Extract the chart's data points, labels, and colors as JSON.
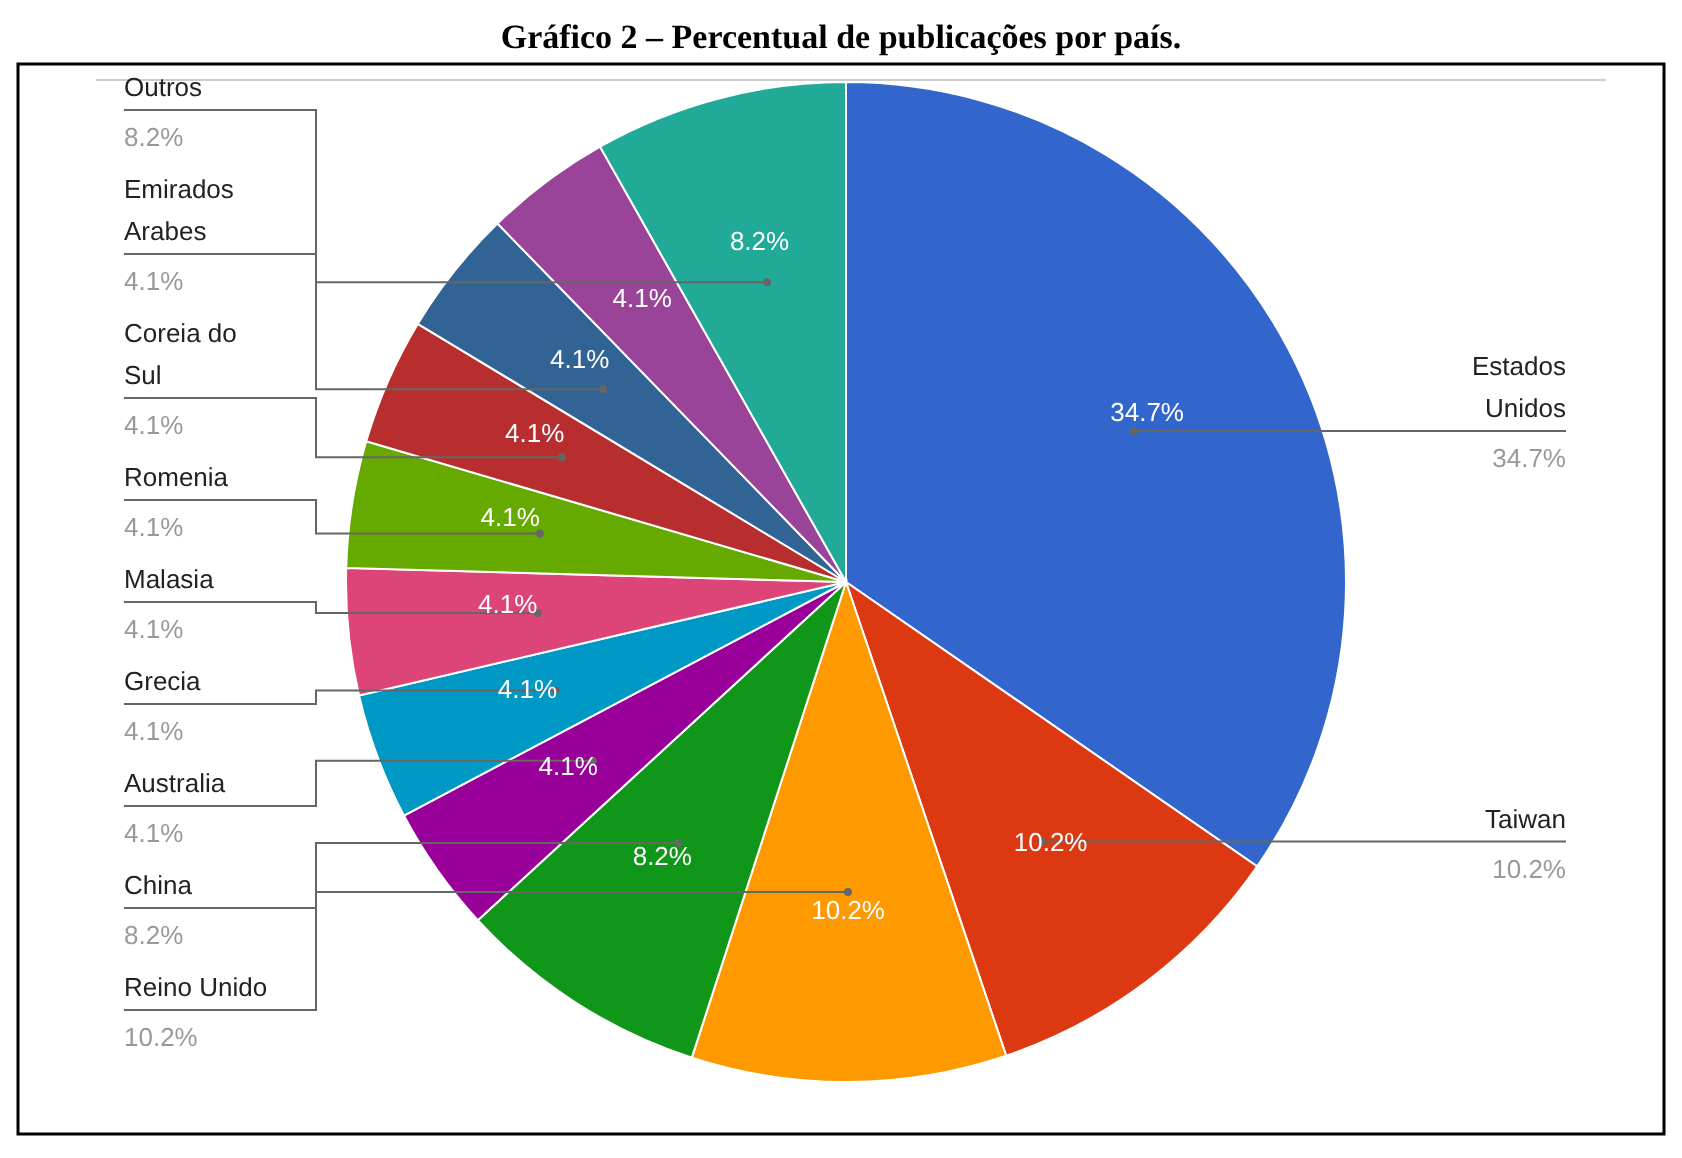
{
  "chart_data": {
    "type": "pie",
    "title": "Gráfico 2 – Percentual de publicações por país.",
    "categories": [
      "Estados Unidos",
      "Taiwan",
      "Reino Unido",
      "China",
      "Australia",
      "Grecia",
      "Malasia",
      "Romenia",
      "Coreia do Sul",
      "Emirados Arabes",
      null,
      "Outros"
    ],
    "values": [
      34.7,
      10.2,
      10.2,
      8.2,
      4.1,
      4.1,
      4.1,
      4.1,
      4.1,
      4.1,
      4.1,
      8.2
    ],
    "value_labels": [
      "34.7%",
      "10.2%",
      "10.2%",
      "8.2%",
      "4.1%",
      "4.1%",
      "4.1%",
      "4.1%",
      "4.1%",
      "4.1%",
      "4.1%",
      "8.2%"
    ],
    "colors": [
      "#3366cc",
      "#dc3912",
      "#ff9900",
      "#109618",
      "#990099",
      "#0099c6",
      "#dd4477",
      "#66aa00",
      "#b82e2e",
      "#316395",
      "#994499",
      "#22aa99"
    ]
  }
}
